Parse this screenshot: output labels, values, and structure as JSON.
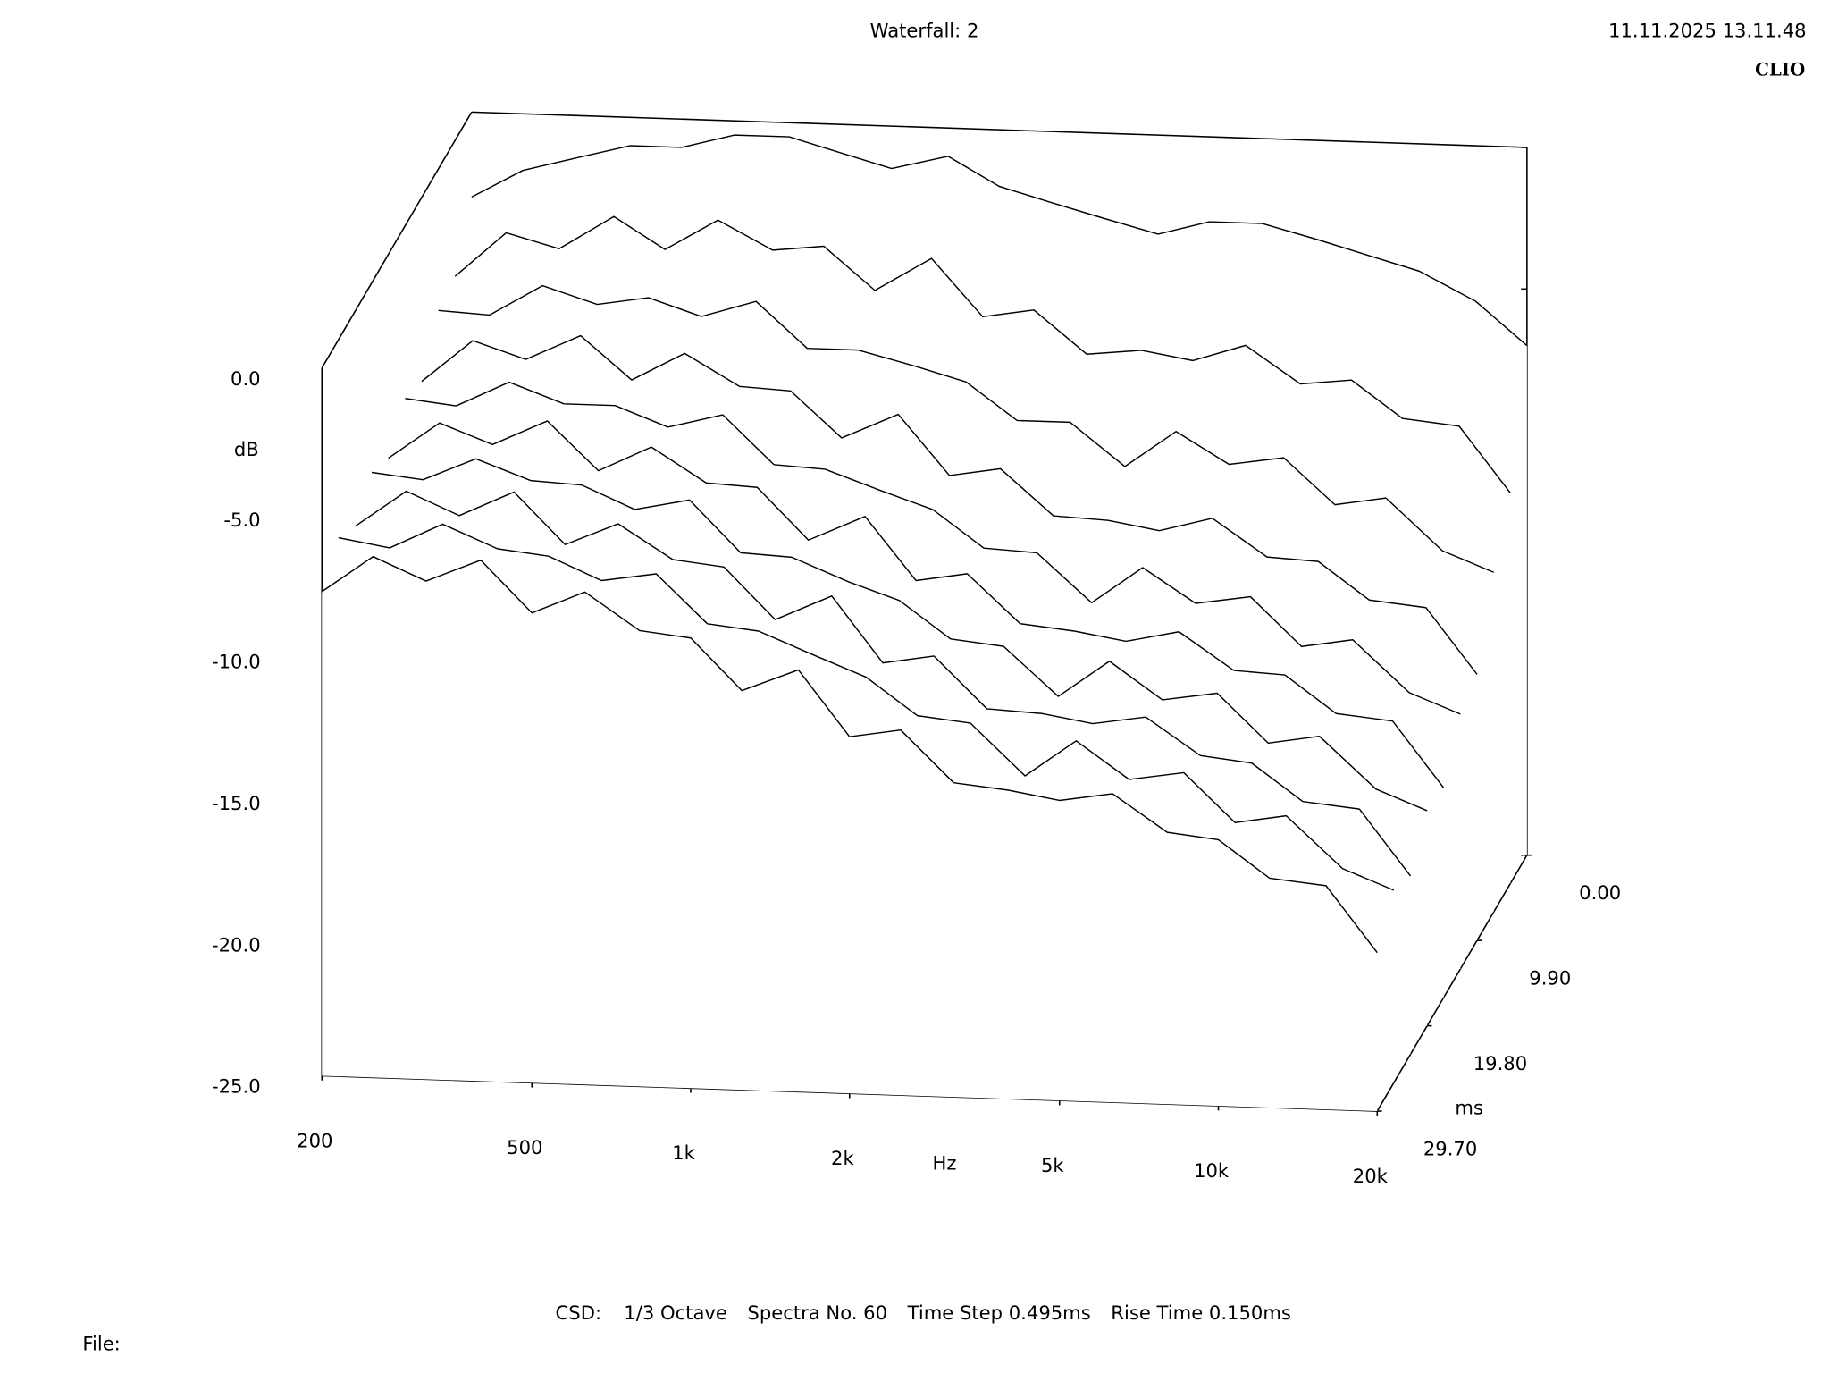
{
  "chart_data": {
    "type": "waterfall",
    "title": "Waterfall: 2",
    "timestamp": "11.11.2025 13.11.48",
    "brand": "CLIO",
    "xlabel": "Hz",
    "ylabel": "dB",
    "zlabel": "ms",
    "x": [
      200,
      250,
      315,
      400,
      500,
      630,
      800,
      1000,
      1250,
      1600,
      2000,
      2500,
      3150,
      4000,
      5000,
      6300,
      8000,
      10000,
      12500,
      16000,
      20000
    ],
    "xscale": "log",
    "xlim": [
      200,
      20000
    ],
    "xticks": [
      200,
      500,
      {
        "value": 1000,
        "label": "1k"
      },
      {
        "value": 2000,
        "label": "2k"
      },
      {
        "value": 5000,
        "label": "5k"
      },
      {
        "value": 10000,
        "label": "10k"
      },
      {
        "value": 20000,
        "label": "20k"
      }
    ],
    "ylim": [
      -25,
      0
    ],
    "yticks": [
      {
        "value": 0,
        "label": "0.0"
      },
      {
        "value": -5,
        "label": "-5.0"
      },
      {
        "value": -10,
        "label": "-10.0"
      },
      {
        "value": -15,
        "label": "-15.0"
      },
      {
        "value": -20,
        "label": "-20.0"
      },
      {
        "value": -25,
        "label": "-25.0"
      }
    ],
    "zlim": [
      0,
      29.7
    ],
    "zticks": [
      {
        "value": 0,
        "label": "0.00"
      },
      {
        "value": 9.9,
        "label": "9.90"
      },
      {
        "value": 19.8,
        "label": "19.80"
      },
      {
        "value": 29.7,
        "label": "29.70"
      }
    ],
    "z": [
      0,
      3.3,
      6.6,
      9.9,
      13.2,
      16.5,
      19.8,
      23.1,
      26.4,
      29.7
    ],
    "color": "#000000",
    "values": [
      [
        -3,
        -2,
        -1.5,
        -1,
        -1,
        -0.5,
        -0.5,
        -1,
        -1.5,
        -1,
        -2,
        -2.5,
        -3,
        -3.5,
        -3,
        -3,
        -3.5,
        -4,
        -4.5,
        -5.5,
        -7
      ],
      [
        -4.8,
        -3.2,
        -3.7,
        -2.5,
        -3.6,
        -2.5,
        -3.5,
        -3.3,
        -4.8,
        -3.6,
        -5.6,
        -5.3,
        -6.8,
        -6.6,
        -6.9,
        -6.3,
        -7.6,
        -7.4,
        -8.7,
        -8.9,
        -11.2
      ],
      [
        -5.0,
        -5.1,
        -4.0,
        -4.6,
        -4.3,
        -4.9,
        -4.3,
        -5.9,
        -5.9,
        -6.4,
        -6.9,
        -8.2,
        -8.2,
        -9.7,
        -8.4,
        -9.5,
        -9.2,
        -10.8,
        -10.5,
        -12.3,
        -13.0
      ],
      [
        -6.5,
        -5.0,
        -5.6,
        -4.7,
        -6.2,
        -5.2,
        -6.3,
        -6.4,
        -8.0,
        -7.1,
        -9.2,
        -8.9,
        -10.5,
        -10.6,
        -10.9,
        -10.4,
        -11.7,
        -11.8,
        -13.1,
        -13.3,
        -15.6
      ],
      [
        -6.1,
        -6.3,
        -5.4,
        -6.1,
        -6.1,
        -6.8,
        -6.3,
        -8.0,
        -8.1,
        -8.8,
        -9.4,
        -10.7,
        -10.8,
        -12.5,
        -11.2,
        -12.4,
        -12.1,
        -13.8,
        -13.5,
        -15.3,
        -16.0
      ],
      [
        -7.2,
        -5.9,
        -6.6,
        -5.7,
        -7.4,
        -6.5,
        -7.7,
        -7.8,
        -9.6,
        -8.7,
        -10.9,
        -10.6,
        -12.3,
        -12.5,
        -12.8,
        -12.4,
        -13.7,
        -13.8,
        -15.1,
        -15.3,
        -17.6
      ],
      [
        -6.7,
        -6.9,
        -6.1,
        -6.8,
        -6.9,
        -7.7,
        -7.3,
        -9.1,
        -9.2,
        -10.0,
        -10.6,
        -11.9,
        -12.1,
        -13.8,
        -12.5,
        -13.8,
        -13.5,
        -15.2,
        -14.9,
        -16.7,
        -17.4
      ],
      [
        -7.6,
        -6.3,
        -7.1,
        -6.2,
        -8.0,
        -7.2,
        -8.4,
        -8.6,
        -10.4,
        -9.5,
        -11.8,
        -11.5,
        -13.3,
        -13.4,
        -13.7,
        -13.4,
        -14.7,
        -14.9,
        -16.2,
        -16.4,
        -18.7
      ],
      [
        -7.0,
        -7.3,
        -6.4,
        -7.2,
        -7.4,
        -8.2,
        -7.9,
        -9.6,
        -9.8,
        -10.6,
        -11.3,
        -12.6,
        -12.8,
        -14.6,
        -13.3,
        -14.6,
        -14.3,
        -16.0,
        -15.7,
        -17.5,
        -18.2
      ],
      [
        -7.9,
        -6.6,
        -7.4,
        -6.6,
        -8.4,
        -7.6,
        -8.9,
        -9.1,
        -10.9,
        -10.1,
        -12.4,
        -12.1,
        -13.9,
        -14.1,
        -14.4,
        -14.1,
        -15.4,
        -15.6,
        -16.9,
        -17.1,
        -19.4
      ]
    ],
    "footer": [
      "CSD:",
      "1/3 Octave",
      "Spectra No. 60",
      "Time Step 0.495ms",
      "Rise Time 0.150ms"
    ],
    "file_label": "File:"
  }
}
